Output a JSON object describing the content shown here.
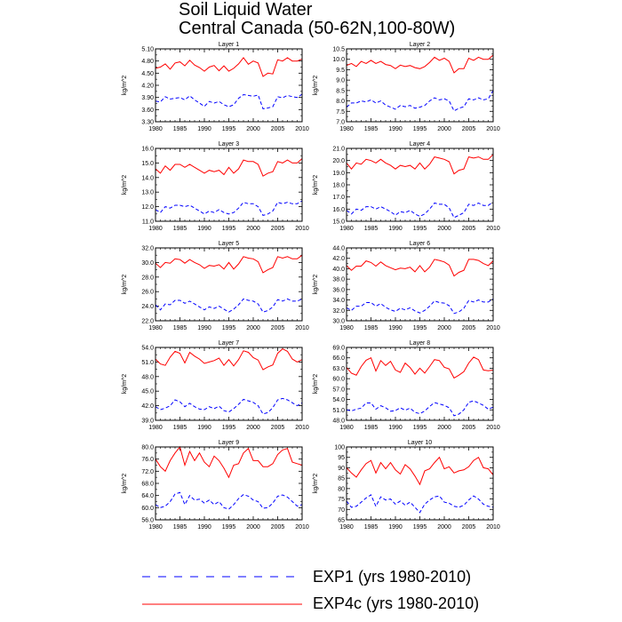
{
  "title": {
    "line1": "Soil Liquid Water",
    "line2": "Central Canada (50-62N,100-80W)"
  },
  "legend": {
    "exp1_label": "EXP1 (yrs 1980-2010)",
    "exp4c_label": "EXP4c (yrs 1980-2010)"
  },
  "colors": {
    "exp1": "#0000ff",
    "exp4c": "#ff0000"
  },
  "chart_data": [
    {
      "type": "line",
      "title": "Layer 1",
      "ylabel": "kg/m^2",
      "xlim": [
        1980,
        2010
      ],
      "ylim": [
        3.3,
        5.1
      ],
      "yticks": [
        "3.30",
        "3.60",
        "3.90",
        "4.20",
        "4.50",
        "4.80",
        "5.10"
      ],
      "xticks": [
        "1980",
        "1985",
        "1990",
        "1995",
        "2000",
        "2005",
        "2010"
      ],
      "series": [
        {
          "name": "EXP1",
          "style": "dashed",
          "values": [
            3.81,
            3.79,
            3.92,
            3.86,
            3.88,
            3.9,
            3.84,
            3.94,
            3.84,
            3.76,
            3.68,
            3.8,
            3.76,
            3.8,
            3.72,
            3.67,
            3.72,
            3.88,
            3.97,
            3.95,
            3.93,
            3.96,
            3.62,
            3.64,
            3.67,
            3.92,
            3.89,
            3.95,
            3.92,
            3.9,
            3.98
          ]
        },
        {
          "name": "EXP4c",
          "style": "solid",
          "values": [
            4.62,
            4.65,
            4.73,
            4.6,
            4.75,
            4.78,
            4.68,
            4.82,
            4.7,
            4.64,
            4.55,
            4.65,
            4.69,
            4.56,
            4.68,
            4.55,
            4.62,
            4.73,
            4.88,
            4.72,
            4.8,
            4.75,
            4.42,
            4.5,
            4.48,
            4.83,
            4.8,
            4.88,
            4.8,
            4.8,
            4.85
          ]
        }
      ]
    },
    {
      "type": "line",
      "title": "Layer 2",
      "ylabel": "kg/m^2",
      "xlim": [
        1980,
        2010
      ],
      "ylim": [
        7.0,
        10.5
      ],
      "yticks": [
        "7.0",
        "7.5",
        "8.0",
        "8.5",
        "9.0",
        "9.5",
        "10.0",
        "10.5"
      ],
      "xticks": [
        "1980",
        "1985",
        "1990",
        "1995",
        "2000",
        "2005",
        "2010"
      ],
      "series": [
        {
          "name": "EXP1",
          "style": "dashed",
          "values": [
            7.7,
            7.9,
            7.9,
            8.0,
            7.95,
            8.05,
            7.9,
            8.0,
            7.8,
            7.7,
            7.6,
            7.78,
            7.72,
            7.78,
            7.65,
            7.7,
            7.78,
            8.0,
            8.15,
            8.05,
            8.1,
            8.0,
            7.52,
            7.65,
            7.72,
            8.1,
            8.05,
            8.15,
            8.05,
            8.1,
            8.5
          ]
        },
        {
          "name": "EXP4c",
          "style": "solid",
          "values": [
            9.7,
            9.8,
            9.65,
            9.9,
            9.8,
            9.95,
            9.8,
            9.9,
            9.75,
            9.7,
            9.55,
            9.72,
            9.65,
            9.7,
            9.6,
            9.55,
            9.65,
            9.85,
            10.1,
            9.95,
            10.05,
            9.9,
            9.35,
            9.55,
            9.55,
            10.05,
            9.95,
            10.1,
            10.0,
            10.0,
            10.2
          ]
        }
      ]
    },
    {
      "type": "line",
      "title": "Layer 3",
      "ylabel": "kg/m^2",
      "xlim": [
        1980,
        2010
      ],
      "ylim": [
        11.0,
        16.0
      ],
      "yticks": [
        "11.0",
        "12.0",
        "13.0",
        "14.0",
        "15.0",
        "16.0"
      ],
      "xticks": [
        "1980",
        "1985",
        "1990",
        "1995",
        "2000",
        "2005",
        "2010"
      ],
      "series": [
        {
          "name": "EXP1",
          "style": "dashed",
          "values": [
            11.8,
            11.6,
            12.0,
            11.9,
            12.1,
            12.1,
            12.0,
            12.1,
            11.9,
            11.7,
            11.5,
            11.7,
            11.6,
            11.8,
            11.6,
            11.5,
            11.6,
            11.9,
            12.3,
            12.2,
            12.2,
            12.0,
            11.4,
            11.5,
            11.7,
            12.3,
            12.2,
            12.3,
            12.2,
            12.2,
            12.4
          ]
        },
        {
          "name": "EXP4c",
          "style": "solid",
          "values": [
            14.6,
            14.3,
            14.8,
            14.5,
            14.9,
            14.9,
            14.7,
            14.9,
            14.7,
            14.5,
            14.3,
            14.5,
            14.4,
            14.5,
            14.2,
            14.7,
            14.3,
            14.6,
            15.2,
            15.1,
            15.1,
            14.9,
            14.1,
            14.3,
            14.4,
            15.1,
            15.0,
            15.2,
            15.0,
            15.0,
            15.3
          ]
        }
      ]
    },
    {
      "type": "line",
      "title": "Layer 4",
      "ylabel": "kg/m^2",
      "xlim": [
        1980,
        2010
      ],
      "ylim": [
        15.0,
        21.0
      ],
      "yticks": [
        "15.0",
        "16.0",
        "17.0",
        "18.0",
        "19.0",
        "20.0",
        "21.0"
      ],
      "xticks": [
        "1980",
        "1985",
        "1990",
        "1995",
        "2000",
        "2005",
        "2010"
      ],
      "series": [
        {
          "name": "EXP1",
          "style": "dashed",
          "values": [
            15.9,
            15.6,
            16.0,
            15.9,
            16.2,
            16.2,
            16.0,
            16.2,
            16.0,
            15.8,
            15.5,
            15.8,
            15.7,
            15.9,
            15.6,
            15.4,
            15.6,
            16.0,
            16.5,
            16.4,
            16.4,
            16.1,
            15.3,
            15.5,
            15.7,
            16.4,
            16.3,
            16.5,
            16.3,
            16.3,
            16.6
          ]
        },
        {
          "name": "EXP4c",
          "style": "solid",
          "values": [
            19.8,
            19.3,
            19.8,
            19.7,
            20.1,
            20.0,
            19.8,
            20.1,
            19.8,
            19.6,
            19.3,
            19.6,
            19.5,
            19.6,
            19.3,
            19.8,
            19.3,
            19.7,
            20.3,
            20.2,
            20.1,
            19.9,
            18.9,
            19.2,
            19.3,
            20.3,
            20.2,
            20.3,
            20.1,
            20.1,
            20.5
          ]
        }
      ]
    },
    {
      "type": "line",
      "title": "Layer 5",
      "ylabel": "kg/m^2",
      "xlim": [
        1980,
        2010
      ],
      "ylim": [
        22.0,
        32.0
      ],
      "yticks": [
        "22.0",
        "24.0",
        "26.0",
        "28.0",
        "30.0",
        "32.0"
      ],
      "xticks": [
        "1980",
        "1985",
        "1990",
        "1995",
        "2000",
        "2005",
        "2010"
      ],
      "series": [
        {
          "name": "EXP1",
          "style": "dashed",
          "values": [
            24.2,
            23.5,
            24.3,
            24.2,
            24.8,
            24.8,
            24.4,
            24.7,
            24.3,
            23.9,
            23.5,
            23.9,
            23.7,
            24.0,
            23.6,
            23.2,
            23.6,
            24.2,
            25.0,
            24.8,
            24.7,
            24.3,
            23.2,
            23.4,
            23.9,
            24.9,
            24.7,
            25.0,
            24.7,
            24.7,
            25.0
          ]
        },
        {
          "name": "EXP4c",
          "style": "solid",
          "values": [
            29.9,
            29.3,
            30.0,
            29.9,
            30.5,
            30.4,
            29.9,
            30.4,
            30.0,
            29.7,
            29.2,
            29.6,
            29.5,
            29.7,
            29.1,
            30.0,
            29.1,
            29.8,
            30.8,
            30.6,
            30.5,
            30.1,
            28.6,
            29.0,
            29.3,
            30.8,
            30.6,
            30.8,
            30.5,
            30.5,
            31.0
          ]
        }
      ]
    },
    {
      "type": "line",
      "title": "Layer 6",
      "ylabel": "kg/m^2",
      "xlim": [
        1980,
        2010
      ],
      "ylim": [
        30.0,
        44.0
      ],
      "yticks": [
        "30.0",
        "32.0",
        "34.0",
        "36.0",
        "38.0",
        "40.0",
        "42.0",
        "44.0"
      ],
      "xticks": [
        "1980",
        "1985",
        "1990",
        "1995",
        "2000",
        "2005",
        "2010"
      ],
      "series": [
        {
          "name": "EXP1",
          "style": "dashed",
          "values": [
            32.5,
            32.0,
            32.8,
            32.8,
            33.5,
            33.5,
            32.8,
            33.3,
            32.6,
            32.1,
            31.8,
            32.4,
            32.1,
            32.5,
            31.9,
            31.5,
            32.0,
            32.8,
            33.8,
            33.5,
            33.4,
            32.9,
            31.4,
            31.7,
            32.4,
            33.9,
            33.6,
            34.0,
            33.6,
            33.6,
            34.2
          ]
        },
        {
          "name": "EXP4c",
          "style": "solid",
          "values": [
            40.6,
            39.7,
            40.5,
            40.5,
            41.5,
            41.2,
            40.5,
            41.3,
            40.6,
            40.2,
            39.8,
            40.1,
            40.0,
            40.3,
            39.4,
            40.6,
            39.4,
            40.3,
            41.8,
            41.6,
            41.3,
            40.7,
            38.6,
            39.3,
            39.7,
            41.8,
            41.8,
            41.6,
            41.0,
            40.6,
            41.5
          ]
        }
      ]
    },
    {
      "type": "line",
      "title": "Layer 7",
      "ylabel": "kg/m^2",
      "xlim": [
        1980,
        2010
      ],
      "ylim": [
        39.0,
        54.0
      ],
      "yticks": [
        "39.0",
        "42.0",
        "45.0",
        "48.0",
        "51.0",
        "54.0"
      ],
      "xticks": [
        "1980",
        "1985",
        "1990",
        "1995",
        "2000",
        "2005",
        "2010"
      ],
      "series": [
        {
          "name": "EXP1",
          "style": "dashed",
          "values": [
            41.8,
            41.2,
            41.5,
            42.0,
            43.2,
            42.8,
            41.8,
            42.5,
            41.8,
            41.3,
            41.2,
            41.8,
            41.4,
            41.9,
            41.0,
            40.7,
            41.4,
            42.3,
            43.3,
            43.0,
            42.7,
            42.0,
            40.3,
            40.6,
            41.6,
            43.2,
            43.5,
            43.2,
            42.6,
            42.0,
            42.6
          ]
        },
        {
          "name": "EXP4c",
          "style": "solid",
          "values": [
            51.6,
            50.6,
            50.3,
            52.0,
            53.2,
            52.8,
            50.8,
            53.0,
            52.2,
            51.6,
            50.7,
            51.0,
            51.3,
            51.8,
            50.3,
            51.5,
            50.2,
            51.5,
            53.3,
            53.0,
            51.9,
            51.4,
            49.4,
            50.0,
            50.4,
            52.8,
            53.7,
            53.2,
            51.6,
            51.0,
            51.5
          ]
        }
      ]
    },
    {
      "type": "line",
      "title": "Layer 8",
      "ylabel": "kg/m^2",
      "xlim": [
        1980,
        2010
      ],
      "ylim": [
        48.0,
        69.0
      ],
      "yticks": [
        "48.0",
        "51.0",
        "54.0",
        "57.0",
        "60.0",
        "63.0",
        "66.0",
        "69.0"
      ],
      "xticks": [
        "1980",
        "1985",
        "1990",
        "1995",
        "2000",
        "2005",
        "2010"
      ],
      "series": [
        {
          "name": "EXP1",
          "style": "dashed",
          "values": [
            51.0,
            50.7,
            51.2,
            51.5,
            53.0,
            53.0,
            51.2,
            52.2,
            51.6,
            50.6,
            50.8,
            51.6,
            50.9,
            51.5,
            50.3,
            49.9,
            50.7,
            52.0,
            53.1,
            52.7,
            52.3,
            51.6,
            49.3,
            49.8,
            51.0,
            53.2,
            53.6,
            53.0,
            52.3,
            51.2,
            51.8
          ]
        },
        {
          "name": "EXP4c",
          "style": "solid",
          "values": [
            63.2,
            61.6,
            61.0,
            63.5,
            65.3,
            66.0,
            62.2,
            65.2,
            63.8,
            65.0,
            62.5,
            61.8,
            64.5,
            63.2,
            61.3,
            63.0,
            61.6,
            63.5,
            65.5,
            65.2,
            63.3,
            62.8,
            60.2,
            61.0,
            62.0,
            64.5,
            66.2,
            65.5,
            62.5,
            62.3,
            62.5
          ]
        }
      ]
    },
    {
      "type": "line",
      "title": "Layer 9",
      "ylabel": "kg/m^2",
      "xlim": [
        1980,
        2010
      ],
      "ylim": [
        56.0,
        80.0
      ],
      "yticks": [
        "56.0",
        "60.0",
        "64.0",
        "68.0",
        "72.0",
        "76.0",
        "80.0"
      ],
      "xticks": [
        "1980",
        "1985",
        "1990",
        "1995",
        "2000",
        "2005",
        "2010"
      ],
      "series": [
        {
          "name": "EXP1",
          "style": "dashed",
          "values": [
            61.0,
            60.0,
            60.5,
            62.0,
            64.5,
            65.0,
            61.0,
            64.0,
            62.5,
            62.8,
            61.5,
            62.5,
            61.0,
            62.0,
            60.0,
            59.5,
            61.0,
            63.0,
            64.3,
            63.8,
            62.5,
            62.0,
            59.8,
            60.0,
            61.5,
            63.8,
            64.2,
            63.5,
            62.0,
            60.5,
            61.0
          ]
        },
        {
          "name": "EXP4c",
          "style": "solid",
          "values": [
            76.0,
            73.5,
            72.0,
            75.5,
            78.0,
            80.0,
            74.0,
            78.5,
            75.5,
            78.0,
            75.0,
            73.5,
            77.0,
            75.5,
            73.0,
            70.0,
            74.0,
            74.5,
            78.0,
            79.5,
            75.5,
            75.5,
            73.5,
            73.5,
            74.5,
            77.5,
            79.0,
            79.5,
            75.0,
            74.5,
            74.0
          ]
        }
      ]
    },
    {
      "type": "line",
      "title": "Layer 10",
      "ylabel": "kg/m^2",
      "xlim": [
        1980,
        2010
      ],
      "ylim": [
        65,
        100
      ],
      "yticks": [
        "65",
        "70",
        "75",
        "80",
        "85",
        "90",
        "95",
        "100"
      ],
      "xticks": [
        "1980",
        "1985",
        "1990",
        "1995",
        "2000",
        "2005",
        "2010"
      ],
      "series": [
        {
          "name": "EXP1",
          "style": "dashed",
          "values": [
            74.0,
            71.0,
            71.5,
            73.5,
            75.5,
            77.0,
            71.5,
            76.0,
            74.5,
            75.0,
            72.5,
            74.0,
            72.0,
            73.5,
            71.0,
            68.5,
            72.5,
            74.5,
            76.0,
            76.5,
            73.5,
            73.0,
            71.5,
            71.0,
            72.0,
            74.5,
            76.5,
            75.0,
            72.5,
            71.5,
            71.0
          ]
        },
        {
          "name": "EXP4c",
          "style": "solid",
          "values": [
            90.0,
            87.5,
            85.5,
            89.0,
            92.0,
            93.5,
            87.5,
            92.5,
            89.5,
            92.5,
            89.0,
            87.0,
            91.5,
            89.5,
            86.0,
            82.0,
            88.5,
            89.5,
            92.5,
            95.0,
            89.5,
            90.5,
            87.5,
            88.5,
            89.0,
            90.5,
            93.5,
            95.0,
            90.0,
            89.5,
            86.5
          ]
        }
      ]
    }
  ]
}
